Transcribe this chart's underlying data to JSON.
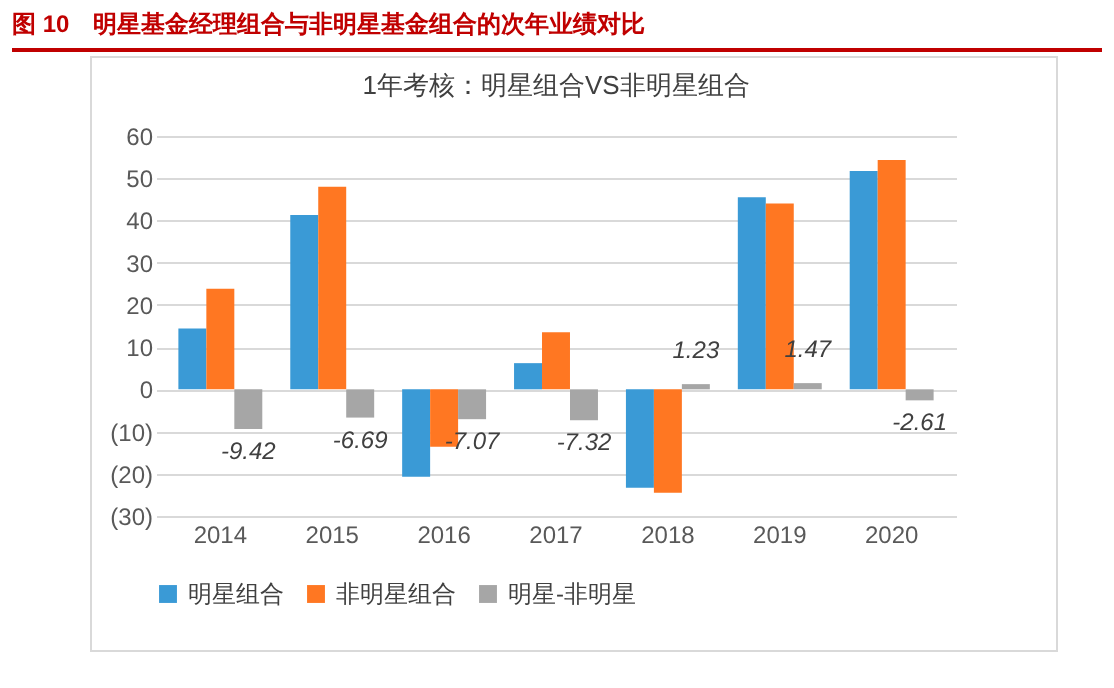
{
  "chart_data": {
    "type": "bar",
    "title": "图 10　明星基金经理组合与非明星基金组合的次年业绩对比",
    "subtitle": "1年考核：明星组合VS非明星组合",
    "categories": [
      "2014",
      "2015",
      "2016",
      "2017",
      "2018",
      "2019",
      "2020"
    ],
    "series": [
      {
        "name": "明星组合",
        "color": "#3a9ad6",
        "values": [
          14.4,
          41.3,
          -20.7,
          6.2,
          -23.3,
          45.5,
          51.7
        ]
      },
      {
        "name": "非明星组合",
        "color": "#ff7722",
        "values": [
          23.8,
          48.0,
          -13.6,
          13.5,
          -24.5,
          44.0,
          54.3
        ]
      },
      {
        "name": "明星-非明星",
        "color": "#a6a6a6",
        "values": [
          -9.42,
          -6.69,
          -7.07,
          -7.32,
          1.23,
          1.47,
          -2.61
        ],
        "value_labels": [
          "-9.42",
          "-6.69",
          "-7.07",
          "-7.32",
          "1.23",
          "1.47",
          "-2.61"
        ]
      }
    ],
    "ylim": [
      -30,
      60
    ],
    "yticks": [
      {
        "value": -30,
        "label": "(30)"
      },
      {
        "value": -20,
        "label": "(20)"
      },
      {
        "value": -10,
        "label": "(10)"
      },
      0,
      10,
      20,
      30,
      40,
      50,
      60
    ],
    "grid": "y",
    "legend": "bottom"
  }
}
